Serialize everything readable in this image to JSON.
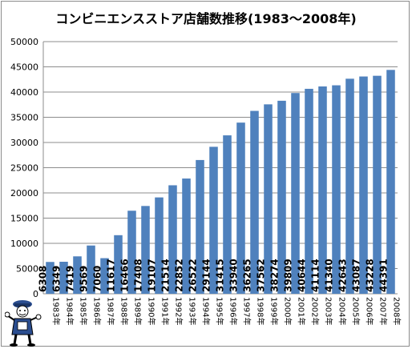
{
  "chart_data": {
    "type": "bar",
    "title": "コンビニエンスストア店舗数推移(1983～2008年)",
    "xlabel": "",
    "ylabel": "",
    "ylim": [
      0,
      50000
    ],
    "y_ticks": [
      "0",
      "5000",
      "10000",
      "15000",
      "20000",
      "25000",
      "30000",
      "35000",
      "40000",
      "45000",
      "50000"
    ],
    "grid": true,
    "legend": "none",
    "bar_color": "#4f81bd",
    "categories": [
      "1983年",
      "1984年",
      "1985年",
      "1986年",
      "1987年",
      "1988年",
      "1989年",
      "1990年",
      "1991年",
      "1992年",
      "1993年",
      "1994年",
      "1995年",
      "1996年",
      "1997年",
      "1998年",
      "1999年",
      "2000年",
      "2001年",
      "2002年",
      "2003年",
      "2004年",
      "2005年",
      "2006年",
      "2007年",
      "2008年"
    ],
    "values": [
      6308,
      6349,
      7419,
      9569,
      7060,
      11617,
      16466,
      17408,
      19107,
      21514,
      22852,
      26522,
      29144,
      31415,
      33940,
      36265,
      37562,
      38274,
      39809,
      40644,
      41114,
      41340,
      42643,
      43087,
      43228,
      44391
    ]
  }
}
